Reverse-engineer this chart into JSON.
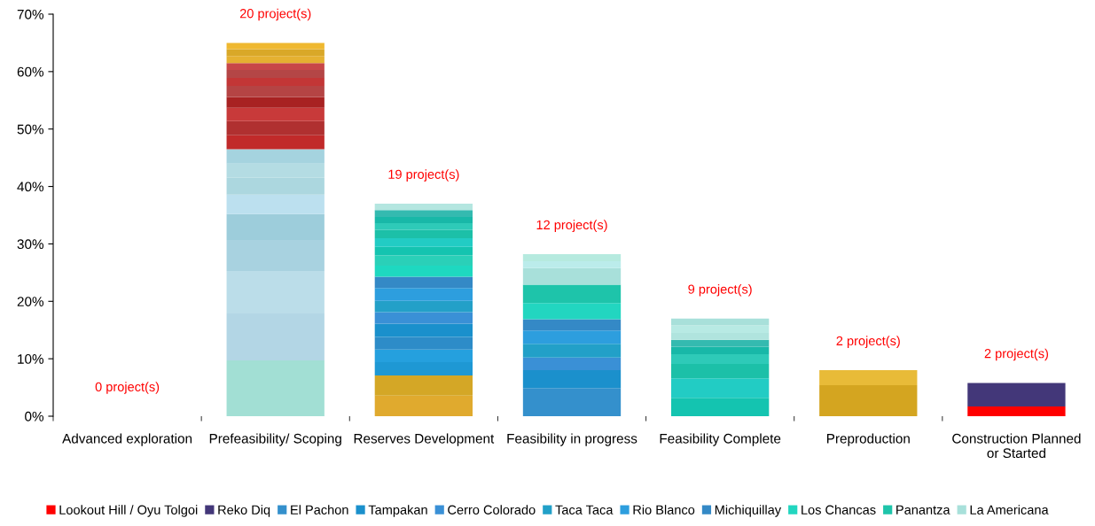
{
  "chart_data": {
    "type": "bar",
    "stacked": true,
    "categories": [
      "Advanced exploration",
      "Prefeasibility/ Scoping",
      "Reserves Development",
      "Feasibility in progress",
      "Feasibility Complete",
      "Preproduction",
      "Construction Planned\nor Started"
    ],
    "ylim": [
      0,
      70
    ],
    "yticks": [
      {
        "value": 0,
        "label": "0%"
      },
      {
        "value": 10,
        "label": "10%"
      },
      {
        "value": 20,
        "label": "20%"
      },
      {
        "value": 30,
        "label": "30%"
      },
      {
        "value": 40,
        "label": "40%"
      },
      {
        "value": 50,
        "label": "50%"
      },
      {
        "value": 60,
        "label": "60%"
      },
      {
        "value": 70,
        "label": "70%"
      }
    ],
    "grid": false,
    "legend": "bottom",
    "annotations": [
      "0 project(s)",
      "20 project(s)",
      "19 project(s)",
      "12 project(s)",
      "9 project(s)",
      "2 project(s)",
      "2 project(s)"
    ],
    "series": [
      {
        "name": "Lookout Hill / Oyu Tolgoi",
        "color": "#ff0000",
        "values": [
          null,
          null,
          null,
          null,
          null,
          null,
          1.7
        ]
      },
      {
        "name": "Reko Diq",
        "color": "#433779",
        "values": [
          null,
          null,
          null,
          null,
          null,
          null,
          4.1
        ]
      },
      {
        "name": "El Pachon",
        "color": "#3490cc",
        "values": [
          null,
          null,
          null,
          4.9,
          null,
          null,
          null
        ]
      },
      {
        "name": "Tampakan",
        "color": "#1b90cc",
        "values": [
          null,
          null,
          null,
          3.1,
          null,
          null,
          null
        ]
      },
      {
        "name": "Cerro Colorado",
        "color": "#3a90d6",
        "values": [
          null,
          null,
          null,
          2.2,
          null,
          null,
          null
        ]
      },
      {
        "name": "Taca Taca",
        "color": "#22a0c8",
        "values": [
          null,
          null,
          null,
          2.4,
          null,
          null,
          null
        ]
      },
      {
        "name": "Rio Blanco",
        "color": "#2d9ede",
        "values": [
          null,
          null,
          null,
          2.3,
          null,
          null,
          null
        ]
      },
      {
        "name": "Michiquillay",
        "color": "#3489c6",
        "values": [
          null,
          null,
          null,
          2.0,
          null,
          null,
          null
        ]
      },
      {
        "name": "Los Chancas",
        "color": "#22d6c0",
        "values": [
          null,
          null,
          null,
          2.8,
          null,
          null,
          null
        ]
      },
      {
        "name": "Panantza",
        "color": "#1ec4aa",
        "values": [
          null,
          null,
          null,
          3.2,
          null,
          null,
          null
        ]
      },
      {
        "name": "La Americana",
        "color": "#a8e0da",
        "values": [
          null,
          null,
          null,
          2.9,
          null,
          null,
          null
        ]
      },
      {
        "color": "#bbeceb",
        "values": [
          null,
          null,
          null,
          1.2,
          null,
          null,
          null
        ]
      },
      {
        "color": "#b6eadf",
        "values": [
          null,
          null,
          null,
          1.2,
          null,
          null,
          null
        ]
      },
      {
        "color": "#a2dfd4",
        "values": [
          null,
          9.7,
          null,
          null,
          null,
          null,
          null
        ]
      },
      {
        "color": "#b3d6e5",
        "values": [
          null,
          8.2,
          null,
          null,
          null,
          null,
          null
        ]
      },
      {
        "color": "#bbdde9",
        "values": [
          null,
          7.4,
          null,
          null,
          null,
          null,
          null
        ]
      },
      {
        "color": "#a8d2e0",
        "values": [
          null,
          5.4,
          null,
          null,
          null,
          null,
          null
        ]
      },
      {
        "color": "#9dcddb",
        "values": [
          null,
          4.5,
          null,
          null,
          null,
          null,
          null
        ]
      },
      {
        "color": "#bce0ef",
        "values": [
          null,
          3.4,
          null,
          null,
          null,
          null,
          null
        ]
      },
      {
        "color": "#acd7df",
        "values": [
          null,
          2.9,
          null,
          null,
          null,
          null,
          null
        ]
      },
      {
        "color": "#b4dce3",
        "values": [
          null,
          2.5,
          null,
          null,
          null,
          null,
          null
        ]
      },
      {
        "color": "#a5d3df",
        "values": [
          null,
          2.5,
          null,
          null,
          null,
          null,
          null
        ]
      },
      {
        "color": "#c12a2a",
        "values": [
          null,
          2.4,
          null,
          null,
          null,
          null,
          null
        ]
      },
      {
        "color": "#b03030",
        "values": [
          null,
          2.5,
          null,
          null,
          null,
          null,
          null
        ]
      },
      {
        "color": "#c83a3a",
        "values": [
          null,
          2.3,
          null,
          null,
          null,
          null,
          null
        ]
      },
      {
        "color": "#a82222",
        "values": [
          null,
          1.9,
          null,
          null,
          null,
          null,
          null
        ]
      },
      {
        "color": "#b54444",
        "values": [
          null,
          1.9,
          null,
          null,
          null,
          null,
          null
        ]
      },
      {
        "color": "#c33636",
        "values": [
          null,
          1.4,
          null,
          null,
          null,
          null,
          null
        ]
      },
      {
        "color": "#b44646",
        "values": [
          null,
          1.4,
          null,
          null,
          null,
          null,
          null
        ]
      },
      {
        "color": "#c84848",
        "values": [
          null,
          1.2,
          null,
          null,
          null,
          null,
          null
        ]
      },
      {
        "color": "#e5b131",
        "values": [
          null,
          1.2,
          null,
          null,
          null,
          null,
          null
        ]
      },
      {
        "color": "#d9a828",
        "values": [
          null,
          1.2,
          null,
          null,
          null,
          null,
          null
        ]
      },
      {
        "color": "#efb830",
        "values": [
          null,
          1.1,
          null,
          null,
          null,
          null,
          null
        ]
      },
      {
        "color": "#e0aa2e",
        "values": [
          null,
          null,
          3.6,
          null,
          null,
          null,
          null
        ]
      },
      {
        "color": "#d4a726",
        "values": [
          null,
          null,
          3.5,
          null,
          null,
          null,
          null
        ]
      },
      {
        "color": "#1e98d4",
        "values": [
          null,
          null,
          2.3,
          null,
          null,
          null,
          null
        ]
      },
      {
        "color": "#25a0de",
        "values": [
          null,
          null,
          2.2,
          null,
          null,
          null,
          null
        ]
      },
      {
        "color": "#2d8cc8",
        "values": [
          null,
          null,
          2.2,
          null,
          null,
          null,
          null
        ]
      },
      {
        "color": "#1a90cc",
        "values": [
          null,
          null,
          2.3,
          null,
          null,
          null,
          null
        ]
      },
      {
        "color": "#3a90d6",
        "values": [
          null,
          null,
          2.0,
          null,
          null,
          null,
          null
        ]
      },
      {
        "color": "#23a0c8",
        "values": [
          null,
          null,
          2.0,
          null,
          null,
          null,
          null
        ]
      },
      {
        "color": "#2d9ede",
        "values": [
          null,
          null,
          2.2,
          null,
          null,
          null,
          null
        ]
      },
      {
        "color": "#3489c6",
        "values": [
          null,
          null,
          2.0,
          null,
          null,
          null,
          null
        ]
      },
      {
        "color": "#1ed8c0",
        "values": [
          null,
          null,
          1.9,
          null,
          null,
          null,
          null
        ]
      },
      {
        "color": "#2ad0b8",
        "values": [
          null,
          null,
          1.8,
          null,
          null,
          null,
          null
        ]
      },
      {
        "color": "#14c4b0",
        "values": [
          null,
          null,
          1.5,
          null,
          null,
          null,
          null
        ]
      },
      {
        "color": "#22ccc4",
        "values": [
          null,
          null,
          1.5,
          null,
          null,
          null,
          null
        ]
      },
      {
        "color": "#1cc0a8",
        "values": [
          null,
          null,
          1.4,
          null,
          null,
          null,
          null
        ]
      },
      {
        "color": "#2ecab8",
        "values": [
          null,
          null,
          1.2,
          null,
          null,
          null,
          null
        ]
      },
      {
        "color": "#18b8a8",
        "values": [
          null,
          null,
          1.1,
          null,
          null,
          null,
          null
        ]
      },
      {
        "color": "#34bab0",
        "values": [
          null,
          null,
          1.2,
          null,
          null,
          null,
          null
        ]
      },
      {
        "color": "#b4e6e0",
        "values": [
          null,
          null,
          1.1,
          null,
          null,
          null,
          null
        ]
      },
      {
        "color": "#14c4b0",
        "values": [
          null,
          null,
          null,
          null,
          3.2,
          null,
          null
        ]
      },
      {
        "color": "#22ccc4",
        "values": [
          null,
          null,
          null,
          null,
          3.4,
          null,
          null
        ]
      },
      {
        "color": "#1cc0a8",
        "values": [
          null,
          null,
          null,
          null,
          2.5,
          null,
          null
        ]
      },
      {
        "color": "#2ecab8",
        "values": [
          null,
          null,
          null,
          null,
          1.7,
          null,
          null
        ]
      },
      {
        "color": "#18b8a8",
        "values": [
          null,
          null,
          null,
          null,
          1.3,
          null,
          null
        ]
      },
      {
        "color": "#34bab0",
        "values": [
          null,
          null,
          null,
          null,
          1.2,
          null,
          null
        ]
      },
      {
        "color": "#b0e4de",
        "values": [
          null,
          null,
          null,
          null,
          1.2,
          null,
          null
        ]
      },
      {
        "color": "#b8eae4",
        "values": [
          null,
          null,
          null,
          null,
          1.3,
          null,
          null
        ]
      },
      {
        "color": "#a8e0da",
        "values": [
          null,
          null,
          null,
          null,
          1.2,
          null,
          null
        ]
      },
      {
        "color": "#d4a520",
        "values": [
          null,
          null,
          null,
          null,
          null,
          5.4,
          null
        ]
      },
      {
        "color": "#e8bb38",
        "values": [
          null,
          null,
          null,
          null,
          null,
          2.6,
          null
        ]
      }
    ]
  }
}
